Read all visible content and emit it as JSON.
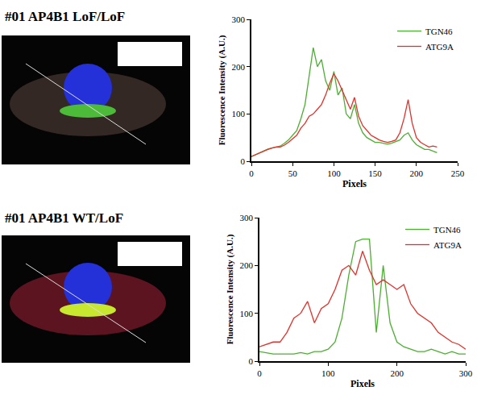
{
  "chart_data": [
    {
      "type": "line",
      "title": "#01 AP4B1 LoF/LoF",
      "x_label": "Pixels",
      "y_label": "Fluorescence Intensity (A.U.)",
      "x": [
        0,
        5,
        10,
        15,
        20,
        25,
        30,
        35,
        40,
        45,
        50,
        55,
        60,
        65,
        70,
        75,
        80,
        85,
        90,
        95,
        100,
        105,
        110,
        115,
        120,
        125,
        130,
        135,
        140,
        145,
        150,
        155,
        160,
        165,
        170,
        175,
        180,
        185,
        190,
        195,
        200,
        205,
        210,
        215,
        220,
        225
      ],
      "series": [
        {
          "name": "TGN46",
          "color": "#4caf32",
          "values": [
            10,
            14,
            18,
            22,
            26,
            28,
            30,
            32,
            38,
            45,
            55,
            65,
            90,
            120,
            180,
            240,
            200,
            215,
            170,
            150,
            190,
            140,
            155,
            100,
            90,
            120,
            80,
            60,
            50,
            45,
            40,
            40,
            38,
            36,
            38,
            42,
            45,
            55,
            60,
            45,
            35,
            30,
            25,
            25,
            22,
            18
          ]
        },
        {
          "name": "ATG9A",
          "color": "#e3302a",
          "values": [
            10,
            14,
            18,
            22,
            25,
            28,
            30,
            30,
            34,
            40,
            48,
            55,
            70,
            80,
            95,
            100,
            110,
            120,
            140,
            165,
            185,
            170,
            150,
            130,
            110,
            135,
            95,
            75,
            65,
            55,
            50,
            45,
            42,
            40,
            42,
            45,
            60,
            90,
            130,
            80,
            50,
            40,
            35,
            30,
            32,
            30
          ]
        }
      ],
      "xlim": [
        0,
        250
      ],
      "xticks": [
        0,
        50,
        100,
        150,
        200,
        250
      ],
      "ylim": [
        0,
        300
      ],
      "yticks": [
        0,
        100,
        200,
        300
      ],
      "grid": false,
      "legend": "upper right"
    },
    {
      "type": "line",
      "title": "#01 AP4B1 WT/LoF",
      "x_label": "Pixels",
      "y_label": "Fluorescence Intensity (A.U.)",
      "x": [
        0,
        10,
        20,
        30,
        40,
        50,
        60,
        70,
        80,
        90,
        100,
        110,
        120,
        130,
        140,
        150,
        160,
        170,
        180,
        190,
        200,
        210,
        220,
        230,
        240,
        250,
        260,
        270,
        280,
        290,
        300
      ],
      "series": [
        {
          "name": "TGN46",
          "color": "#4caf32",
          "values": [
            20,
            18,
            15,
            15,
            15,
            15,
            18,
            15,
            20,
            20,
            25,
            40,
            90,
            180,
            250,
            255,
            255,
            60,
            200,
            80,
            40,
            30,
            25,
            20,
            20,
            25,
            20,
            15,
            20,
            15,
            15
          ]
        },
        {
          "name": "ATG9A",
          "color": "#e3302a",
          "values": [
            30,
            35,
            40,
            40,
            60,
            90,
            100,
            125,
            80,
            110,
            120,
            150,
            190,
            200,
            180,
            230,
            190,
            160,
            170,
            160,
            150,
            160,
            120,
            100,
            90,
            80,
            60,
            50,
            40,
            35,
            25
          ]
        }
      ],
      "xlim": [
        0,
        300
      ],
      "xticks": [
        0,
        100,
        200,
        300
      ],
      "ylim": [
        0,
        300
      ],
      "yticks": [
        0,
        100,
        200,
        300
      ],
      "grid": false,
      "legend": "upper right"
    }
  ]
}
